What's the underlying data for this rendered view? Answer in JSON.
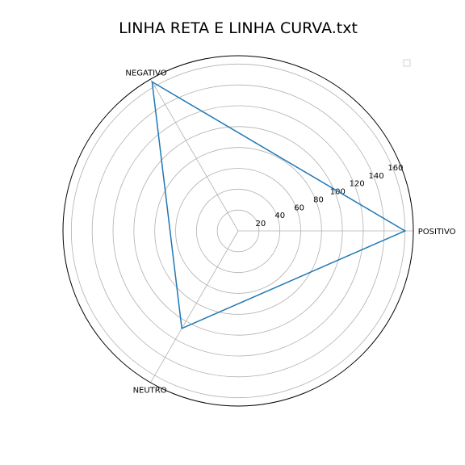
{
  "chart_data": {
    "type": "radar",
    "title": "LINHA RETA E LINHA CURVA.txt",
    "categories": [
      "POSITIVO",
      "NEGATIVO",
      "NEUTRO"
    ],
    "series": [
      {
        "values": [
          160,
          165,
          108
        ],
        "color": "#1f77b4"
      }
    ],
    "r_ticks": [
      "20",
      "40",
      "60",
      "80",
      "100",
      "120",
      "140",
      "160"
    ],
    "rlim": [
      0,
      168
    ],
    "grid": true,
    "legend": "top-right, empty"
  }
}
